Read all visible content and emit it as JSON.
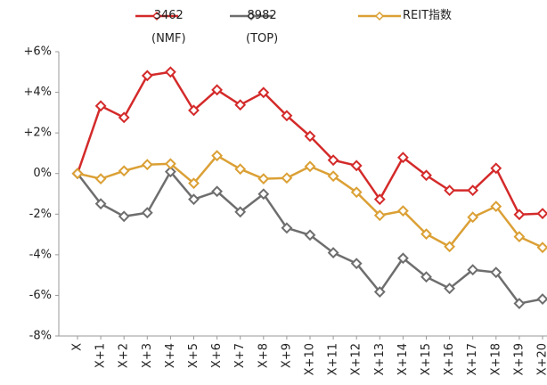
{
  "chart_data": {
    "type": "line",
    "categories": [
      "X",
      "X+1",
      "X+2",
      "X+3",
      "X+4",
      "X+5",
      "X+6",
      "X+7",
      "X+8",
      "X+9",
      "X+10",
      "X+11",
      "X+12",
      "X+13",
      "X+14",
      "X+15",
      "X+16",
      "X+17",
      "X+18",
      "X+19",
      "X+20"
    ],
    "series": [
      {
        "name": "3462\n(NMF)",
        "color": "#d42a2a",
        "values": [
          0,
          3.33,
          2.76,
          4.82,
          5.0,
          3.11,
          4.12,
          3.38,
          3.99,
          2.85,
          1.84,
          0.66,
          0.39,
          -1.27,
          0.79,
          -0.09,
          -0.83,
          -0.83,
          0.26,
          -2.02,
          -1.97
        ]
      },
      {
        "name": "8982\n(TOP)",
        "color": "#6e6e6e",
        "values": [
          0,
          -1.49,
          -2.11,
          -1.93,
          0.09,
          -1.27,
          -0.88,
          -1.89,
          -1.01,
          -2.68,
          -3.03,
          -3.9,
          -4.43,
          -5.83,
          -4.17,
          -5.09,
          -5.66,
          -4.74,
          -4.87,
          -6.4,
          -6.18
        ]
      },
      {
        "name": "REIT指数",
        "color": "#dba035",
        "values": [
          0,
          -0.26,
          0.13,
          0.44,
          0.48,
          -0.48,
          0.88,
          0.22,
          -0.26,
          -0.22,
          0.35,
          -0.13,
          -0.92,
          -2.06,
          -1.84,
          -2.98,
          -3.6,
          -2.15,
          -1.62,
          -3.11,
          -3.64
        ]
      }
    ],
    "ylim": [
      -8,
      6
    ],
    "yticks": [
      {
        "value": 6,
        "label": "+6%"
      },
      {
        "value": 4,
        "label": "+4%"
      },
      {
        "value": 2,
        "label": "+2%"
      },
      {
        "value": 0,
        "label": "0%"
      },
      {
        "value": -2,
        "label": "-2%"
      },
      {
        "value": -4,
        "label": "-4%"
      },
      {
        "value": -6,
        "label": "-6%"
      },
      {
        "value": -8,
        "label": "-8%"
      }
    ],
    "legend": "top"
  }
}
